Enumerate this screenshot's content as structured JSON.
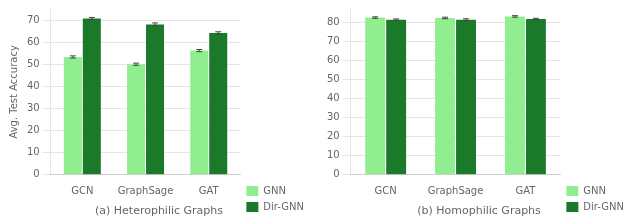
{
  "chart_data": [
    {
      "type": "bar",
      "title": "(a) Heterophilic Graphs",
      "ylabel": "Avg. Test Accuracy",
      "categories": [
        "GCN",
        "GraphSage",
        "GAT"
      ],
      "series": [
        {
          "name": "GNN",
          "color": "#90EE90",
          "values": [
            53.3,
            50.0,
            56.2
          ],
          "errors": [
            0.5,
            0.5,
            0.5
          ]
        },
        {
          "name": "Dir-GNN",
          "color": "#1a7a2a",
          "values": [
            70.7,
            68.0,
            64.2
          ],
          "errors": [
            0.5,
            0.7,
            0.5
          ]
        }
      ],
      "ylim": [
        0,
        75
      ],
      "yticks": [
        0,
        10,
        20,
        30,
        40,
        50,
        60,
        70
      ],
      "grid": true,
      "legend": "lower right"
    },
    {
      "type": "bar",
      "title": "(b) Homophilic Graphs",
      "categories": [
        "GCN",
        "GraphSage",
        "GAT"
      ],
      "series": [
        {
          "name": "GNN",
          "color": "#90EE90",
          "values": [
            82.5,
            82.3,
            83.1
          ],
          "errors": [
            0.4,
            0.4,
            0.4
          ]
        },
        {
          "name": "Dir-GNN",
          "color": "#1a7a2a",
          "values": [
            81.4,
            81.4,
            81.7
          ],
          "errors": [
            0.4,
            0.5,
            0.4
          ]
        }
      ],
      "ylim": [
        0,
        87
      ],
      "yticks": [
        0,
        10,
        20,
        30,
        40,
        50,
        60,
        70,
        80
      ],
      "grid": true,
      "legend": "lower right"
    }
  ]
}
